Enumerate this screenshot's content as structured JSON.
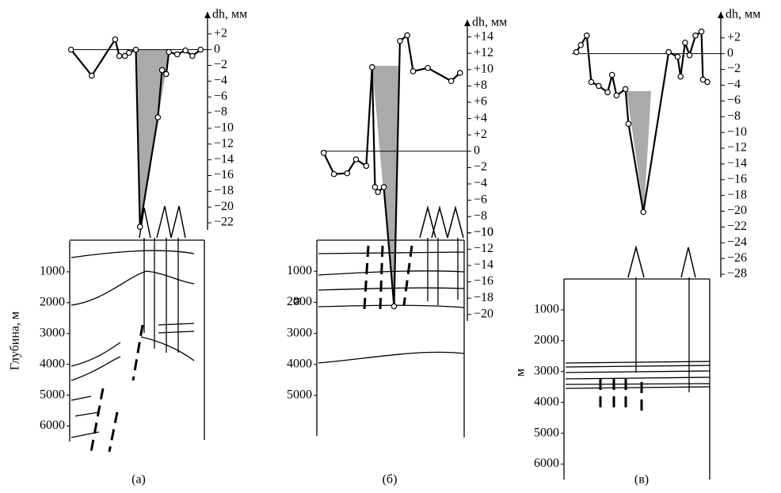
{
  "chart_data": [
    {
      "type": "line",
      "caption": "(а)",
      "y_label": "dh, мм",
      "depth_label": "Глубина, м",
      "xlim": [
        0,
        100
      ],
      "ylim": [
        -22.9,
        4.8
      ],
      "yticks": [
        {
          "value": 2,
          "label": "+2"
        },
        0,
        {
          "value": -2,
          "label": "−2"
        },
        {
          "value": -4,
          "label": "−4"
        },
        {
          "value": -6,
          "label": "−6"
        },
        {
          "value": -8,
          "label": "−8"
        },
        {
          "value": -10,
          "label": "−10"
        },
        {
          "value": -12,
          "label": "−12"
        },
        {
          "value": -14,
          "label": "−14"
        },
        {
          "value": -16,
          "label": "−16"
        },
        {
          "value": -18,
          "label": "−18"
        },
        {
          "value": -20,
          "label": "−20"
        },
        {
          "value": -22,
          "label": "−22"
        }
      ],
      "depth_lim": [
        0,
        6500
      ],
      "depth_ticks": [
        1000,
        2000,
        3000,
        4000,
        5000,
        6000
      ],
      "x": [
        1,
        16,
        33,
        36,
        40,
        43,
        48,
        51,
        64,
        67,
        70,
        72,
        78,
        84,
        89,
        95
      ],
      "values": [
        0,
        -3.3,
        1.3,
        -0.8,
        -0.8,
        -0.4,
        0,
        -22.5,
        -8.6,
        -2.6,
        -3.1,
        -0.3,
        -0.6,
        -0.1,
        -0.8,
        0
      ]
    },
    {
      "type": "line",
      "caption": "(б)",
      "y_label": "dh, мм",
      "depth_label": "м",
      "xlim": [
        0,
        100
      ],
      "ylim": [
        -20.8,
        16.1
      ],
      "yticks": [
        {
          "value": 14,
          "label": "+14"
        },
        {
          "value": 12,
          "label": "+12"
        },
        {
          "value": 10,
          "label": "+10"
        },
        {
          "value": 8,
          "label": "+8"
        },
        {
          "value": 6,
          "label": "+6"
        },
        {
          "value": 4,
          "label": "+4"
        },
        {
          "value": 2,
          "label": "+2"
        },
        0,
        {
          "value": -2,
          "label": "−2"
        },
        {
          "value": -4,
          "label": "−4"
        },
        {
          "value": -6,
          "label": "−6"
        },
        {
          "value": -8,
          "label": "−8"
        },
        {
          "value": -10,
          "label": "−10"
        },
        {
          "value": -10,
          "label": "−10"
        },
        {
          "value": -12,
          "label": "−12"
        },
        {
          "value": -14,
          "label": "−14"
        },
        {
          "value": -16,
          "label": "−16"
        },
        {
          "value": -18,
          "label": "−18"
        },
        {
          "value": -20,
          "label": "−20"
        }
      ],
      "depth_lim": [
        0,
        6300
      ],
      "depth_ticks": [
        1000,
        2000,
        3000,
        4000,
        5000
      ],
      "x": [
        2,
        9,
        18,
        24,
        31,
        35,
        37,
        39,
        43,
        50,
        54,
        59,
        63,
        73,
        89,
        95
      ],
      "values": [
        -0.2,
        -2.8,
        -2.7,
        -1,
        -1.8,
        10.3,
        -4.4,
        -5,
        -4.4,
        -19,
        13.5,
        14.2,
        9.8,
        10.2,
        8.6,
        9.6
      ]
    },
    {
      "type": "line",
      "caption": "(в)",
      "y_label": "dh, мм",
      "depth_label": "м",
      "xlim": [
        0,
        100
      ],
      "ylim": [
        -28.4,
        5.3
      ],
      "yticks": [
        {
          "value": 2,
          "label": "+2"
        },
        0,
        {
          "value": -2,
          "label": "−2"
        },
        {
          "value": -4,
          "label": "−4"
        },
        {
          "value": -6,
          "label": "−6"
        },
        {
          "value": -8,
          "label": "−8"
        },
        {
          "value": -10,
          "label": "−10"
        },
        {
          "value": -12,
          "label": "−12"
        },
        {
          "value": -14,
          "label": "−14"
        },
        {
          "value": -16,
          "label": "−16"
        },
        {
          "value": -18,
          "label": "−18"
        },
        {
          "value": -20,
          "label": "−20"
        },
        {
          "value": -22,
          "label": "−22"
        },
        {
          "value": -24,
          "label": "−24"
        },
        {
          "value": -26,
          "label": "−26"
        },
        {
          "value": -28,
          "label": "−28"
        }
      ],
      "depth_lim": [
        0,
        6500
      ],
      "depth_ticks": [
        1000,
        2000,
        3000,
        4000,
        5000,
        6000
      ],
      "x": [
        3,
        6,
        10,
        13,
        18,
        24,
        27,
        30,
        36,
        38,
        48,
        65,
        71,
        73,
        76,
        79,
        83,
        87,
        88,
        91
      ],
      "values": [
        0.2,
        1.1,
        2.3,
        -3.6,
        -4.1,
        -4.9,
        -2.7,
        -5.3,
        -4.5,
        -8.9,
        -20.1,
        0.2,
        -0.4,
        -2.9,
        1.4,
        -0.2,
        2.3,
        2.8,
        -3.3,
        -3.6
      ]
    }
  ]
}
